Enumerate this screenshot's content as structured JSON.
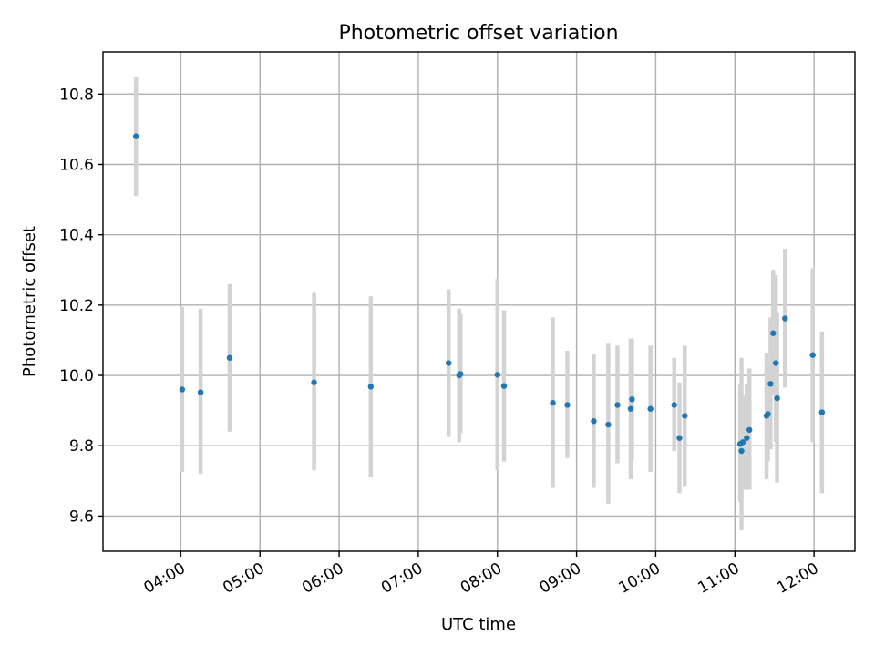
{
  "chart_data": {
    "type": "scatter",
    "title": "Photometric offset variation",
    "xlabel": "UTC time",
    "ylabel": "Photometric offset",
    "x_tick_labels": [
      "04:00",
      "05:00",
      "06:00",
      "07:00",
      "08:00",
      "09:00",
      "10:00",
      "11:00",
      "12:00"
    ],
    "x_ticks": [
      "04:00",
      "05:00",
      "06:00",
      "07:00",
      "08:00",
      "09:00",
      "10:00",
      "11:00",
      "12:00"
    ],
    "y_ticks": [
      9.6,
      9.8,
      10.0,
      10.2,
      10.4,
      10.6,
      10.8
    ],
    "y_tick_labels": [
      "9.6",
      "9.8",
      "10.0",
      "10.2",
      "10.4",
      "10.6",
      "10.8"
    ],
    "xlim": [
      "03:01",
      "12:31"
    ],
    "ylim": [
      9.5,
      10.92
    ],
    "grid": true,
    "point_color": "#1f77b4",
    "errorbar_color": "#d3d3d3",
    "points": [
      {
        "x": "03:26",
        "y": 10.68,
        "low": 10.51,
        "high": 10.85
      },
      {
        "x": "04:01",
        "y": 9.96,
        "low": 9.725,
        "high": 10.195
      },
      {
        "x": "04:15",
        "y": 9.952,
        "low": 9.72,
        "high": 10.19
      },
      {
        "x": "04:37",
        "y": 10.05,
        "low": 9.84,
        "high": 10.26
      },
      {
        "x": "05:41",
        "y": 9.98,
        "low": 9.73,
        "high": 10.235
      },
      {
        "x": "06:24",
        "y": 9.968,
        "low": 9.71,
        "high": 10.225
      },
      {
        "x": "07:23",
        "y": 10.035,
        "low": 9.825,
        "high": 10.245
      },
      {
        "x": "07:31",
        "y": 10.0,
        "low": 9.81,
        "high": 10.19
      },
      {
        "x": "07:32",
        "y": 10.004,
        "low": 9.835,
        "high": 10.175
      },
      {
        "x": "08:00",
        "y": 10.002,
        "low": 9.73,
        "high": 10.275
      },
      {
        "x": "08:05",
        "y": 9.97,
        "low": 9.755,
        "high": 10.185
      },
      {
        "x": "08:42",
        "y": 9.922,
        "low": 9.68,
        "high": 10.165
      },
      {
        "x": "08:53",
        "y": 9.916,
        "low": 9.765,
        "high": 10.07
      },
      {
        "x": "09:13",
        "y": 9.87,
        "low": 9.68,
        "high": 10.06
      },
      {
        "x": "09:24",
        "y": 9.86,
        "low": 9.635,
        "high": 10.09
      },
      {
        "x": "09:31",
        "y": 9.916,
        "low": 9.75,
        "high": 10.085
      },
      {
        "x": "09:41",
        "y": 9.905,
        "low": 9.705,
        "high": 10.105
      },
      {
        "x": "09:42",
        "y": 9.932,
        "low": 9.76,
        "high": 10.105
      },
      {
        "x": "09:56",
        "y": 9.905,
        "low": 9.725,
        "high": 10.085
      },
      {
        "x": "10:14",
        "y": 9.916,
        "low": 9.785,
        "high": 10.05
      },
      {
        "x": "10:18",
        "y": 9.822,
        "low": 9.665,
        "high": 9.98
      },
      {
        "x": "10:22",
        "y": 9.885,
        "low": 9.685,
        "high": 10.085
      },
      {
        "x": "11:04",
        "y": 9.805,
        "low": 9.64,
        "high": 9.975
      },
      {
        "x": "11:05",
        "y": 9.785,
        "low": 9.56,
        "high": 10.05
      },
      {
        "x": "11:06",
        "y": 9.81,
        "low": 9.675,
        "high": 9.945
      },
      {
        "x": "11:09",
        "y": 9.822,
        "low": 9.675,
        "high": 9.975
      },
      {
        "x": "11:11",
        "y": 9.845,
        "low": 9.675,
        "high": 10.02
      },
      {
        "x": "11:24",
        "y": 9.885,
        "low": 9.705,
        "high": 10.065
      },
      {
        "x": "11:25",
        "y": 9.89,
        "low": 9.755,
        "high": 10.025
      },
      {
        "x": "11:27",
        "y": 9.976,
        "low": 9.79,
        "high": 10.165
      },
      {
        "x": "11:29",
        "y": 10.12,
        "low": 9.945,
        "high": 10.3
      },
      {
        "x": "11:31",
        "y": 10.035,
        "low": 9.81,
        "high": 10.285
      },
      {
        "x": "11:32",
        "y": 9.935,
        "low": 9.695,
        "high": 10.18
      },
      {
        "x": "11:38",
        "y": 10.162,
        "low": 9.965,
        "high": 10.36
      },
      {
        "x": "11:59",
        "y": 10.058,
        "low": 9.81,
        "high": 10.305
      },
      {
        "x": "12:06",
        "y": 9.895,
        "low": 9.665,
        "high": 10.125
      }
    ]
  }
}
